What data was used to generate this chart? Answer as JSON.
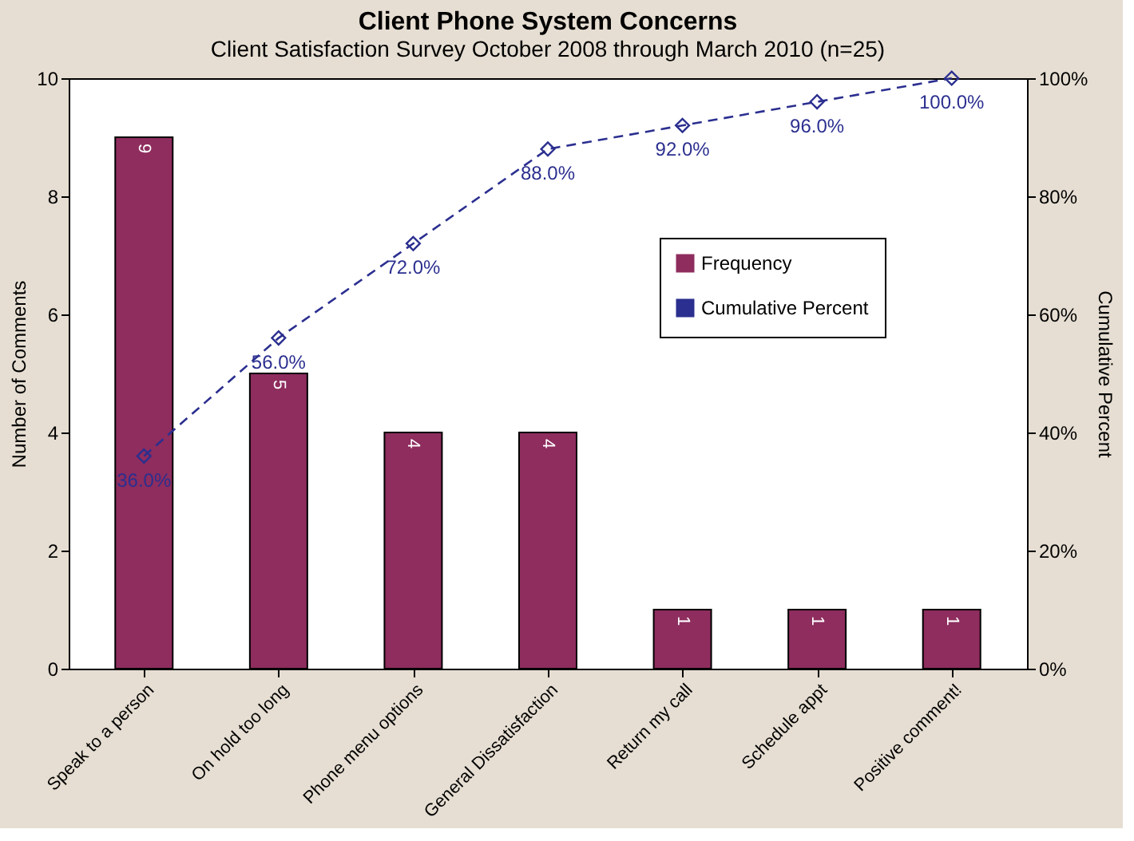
{
  "chart_data": {
    "type": "bar",
    "title": "Client Phone System Concerns",
    "subtitle": "Client Satisfaction Survey October 2008 through March 2010 (n=25)",
    "ylabel": "Number of Comments",
    "y2label": "Cumulative Percent",
    "categories": [
      "Speak to a person",
      "On hold too long",
      "Phone menu options",
      "General Dissatisfaction",
      "Return my call",
      "Schedule appt",
      "Positive comment!"
    ],
    "series": [
      {
        "name": "Frequency",
        "color": "#8e2d5e",
        "values": [
          9,
          5,
          4,
          4,
          1,
          1,
          1
        ],
        "value_labels": [
          "9",
          "5",
          "4",
          "4",
          "1",
          "1",
          "1"
        ]
      },
      {
        "name": "Cumulative Percent",
        "type": "line",
        "axis": "y2",
        "color": "#2b2f8f",
        "marker": "diamond",
        "line_style": "dashed",
        "values": [
          36,
          56,
          72,
          88,
          92,
          96,
          100
        ],
        "value_labels": [
          "36.0%",
          "56.0%",
          "72.0%",
          "88.0%",
          "92.0%",
          "96.0%",
          "100.0%"
        ]
      }
    ],
    "ylim": [
      0,
      10
    ],
    "yticks": [
      0,
      2,
      4,
      6,
      8,
      10
    ],
    "y2lim": [
      0,
      100
    ],
    "y2ticks": [
      {
        "value": 0,
        "label": "0%"
      },
      {
        "value": 20,
        "label": "20%"
      },
      {
        "value": 40,
        "label": "40%"
      },
      {
        "value": 60,
        "label": "60%"
      },
      {
        "value": 80,
        "label": "80%"
      },
      {
        "value": 100,
        "label": "100%"
      }
    ],
    "grid": false,
    "legend": "right"
  }
}
